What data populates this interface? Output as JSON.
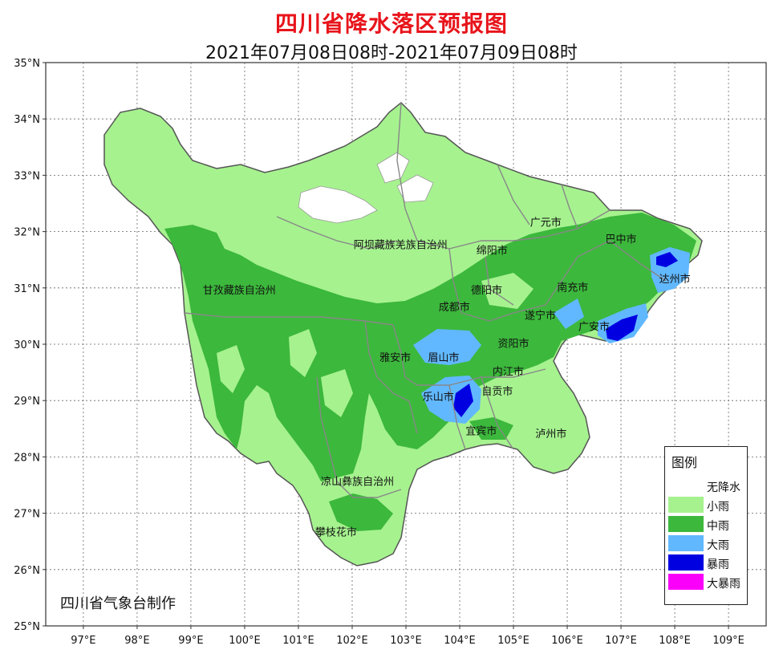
{
  "title": "四川省降水落区预报图",
  "subtitle": "2021年07月08日08时-2021年07月09日08时",
  "credit": "四川省气象台制作",
  "lat_labels": [
    "35°N",
    "34°N",
    "33°N",
    "32°N",
    "31°N",
    "30°N",
    "29°N",
    "28°N",
    "27°N",
    "26°N",
    "25°N"
  ],
  "lon_labels": [
    "97°E",
    "98°E",
    "99°E",
    "100°E",
    "101°E",
    "102°E",
    "103°E",
    "104°E",
    "105°E",
    "106°E",
    "107°E",
    "108°E",
    "109°E"
  ],
  "cities": [
    {
      "name": "阿坝藏族羌族自治州",
      "lon": 102.9,
      "lat": 31.7
    },
    {
      "name": "广元市",
      "lon": 105.6,
      "lat": 32.1
    },
    {
      "name": "巴中市",
      "lon": 107.0,
      "lat": 31.8
    },
    {
      "name": "绵阳市",
      "lon": 104.6,
      "lat": 31.6
    },
    {
      "name": "达州市",
      "lon": 108.0,
      "lat": 31.1
    },
    {
      "name": "甘孜藏族自治州",
      "lon": 99.9,
      "lat": 30.9
    },
    {
      "name": "德阳市",
      "lon": 104.5,
      "lat": 30.9
    },
    {
      "name": "南充市",
      "lon": 106.1,
      "lat": 30.95
    },
    {
      "name": "成都市",
      "lon": 103.9,
      "lat": 30.6
    },
    {
      "name": "遂宁市",
      "lon": 105.5,
      "lat": 30.45
    },
    {
      "name": "广安市",
      "lon": 106.5,
      "lat": 30.25
    },
    {
      "name": "资阳市",
      "lon": 105.0,
      "lat": 29.95
    },
    {
      "name": "雅安市",
      "lon": 102.8,
      "lat": 29.7
    },
    {
      "name": "眉山市",
      "lon": 103.7,
      "lat": 29.7
    },
    {
      "name": "内江市",
      "lon": 104.9,
      "lat": 29.45
    },
    {
      "name": "自贡市",
      "lon": 104.7,
      "lat": 29.1
    },
    {
      "name": "乐山市",
      "lon": 103.6,
      "lat": 29.0
    },
    {
      "name": "宜宾市",
      "lon": 104.4,
      "lat": 28.4
    },
    {
      "name": "泸州市",
      "lon": 105.7,
      "lat": 28.35
    },
    {
      "name": "凉山彝族自治州",
      "lon": 102.1,
      "lat": 27.5
    },
    {
      "name": "攀枝花市",
      "lon": 101.7,
      "lat": 26.6
    }
  ],
  "legend": {
    "title": "图例",
    "items": [
      {
        "label": "无降水",
        "color": "#ffffff"
      },
      {
        "label": "小雨",
        "color": "#a6f28f"
      },
      {
        "label": "中雨",
        "color": "#3cb83c"
      },
      {
        "label": "大雨",
        "color": "#61b8ff"
      },
      {
        "label": "暴雨",
        "color": "#0000e1"
      },
      {
        "label": "大暴雨",
        "color": "#fa00fa"
      }
    ]
  }
}
